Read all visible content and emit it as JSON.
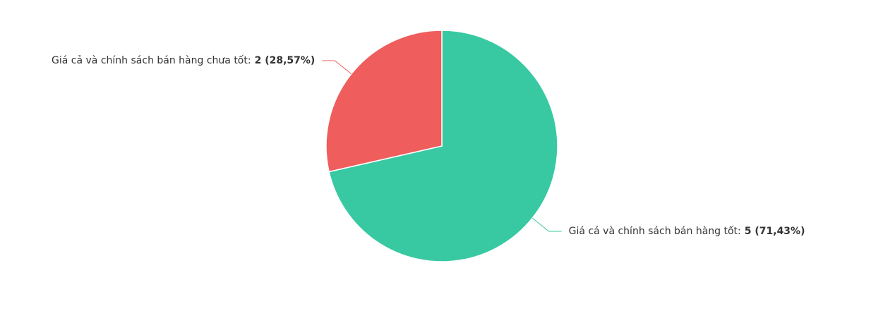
{
  "chart_data": {
    "type": "pie",
    "categories": [
      "Giá cả và chính sách bán hàng tốt:",
      "Giá cả và chính sách bán hàng chưa tốt:"
    ],
    "values": [
      5,
      2
    ],
    "value_labels": [
      "5 (71,43%)",
      "2 (28,57%)"
    ],
    "colors": [
      "#38c9a2",
      "#ef5d5d"
    ]
  }
}
